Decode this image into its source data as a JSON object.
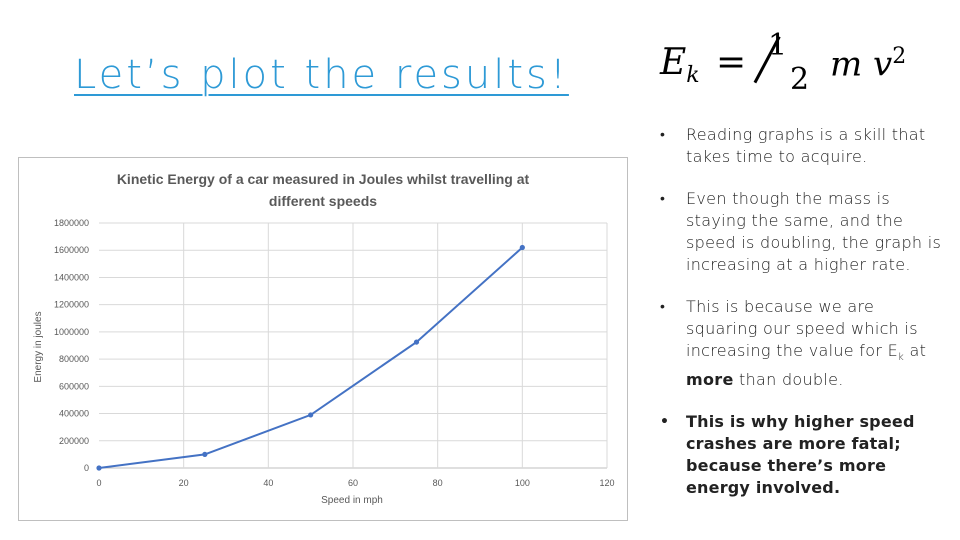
{
  "slide": {
    "title": "Let’s plot the results!",
    "formula": {
      "e": "E",
      "sub": "k",
      "eq": "=",
      "num": "1",
      "den": "2",
      "mv": "m v",
      "sup": "2"
    },
    "bullets": {
      "b1": "Reading graphs is a skill that takes time to acquire.",
      "b2": "Even though the mass is staying the same, and the speed is doubling, the graph is increasing at a higher rate.",
      "b3_pre": "This is because we are squaring our speed which is increasing the value for E",
      "b3_sub": "k",
      "b3_mid": " at ",
      "b3_bold": "more",
      "b3_post": " than double.",
      "b4": "This is why higher speed crashes are more fatal; because there’s more energy involved."
    }
  },
  "chart_data": {
    "type": "line",
    "title": "Kinetic Energy of a car measured in Joules whilst travelling at different speeds",
    "xlabel": "Speed in mph",
    "ylabel": "Energy in joules",
    "x": [
      0,
      25,
      50,
      75,
      100
    ],
    "series": [
      {
        "values": [
          0,
          100000,
          390000,
          925000,
          1620000
        ],
        "color": "#4472c4"
      }
    ],
    "xlim": [
      0,
      120
    ],
    "ylim": [
      0,
      1800000
    ],
    "xticks": [
      0,
      20,
      40,
      60,
      80,
      100,
      120
    ],
    "yticks": [
      0,
      200000,
      400000,
      600000,
      800000,
      1000000,
      1200000,
      1400000,
      1600000,
      1800000
    ],
    "grid": true,
    "legend": "none"
  }
}
